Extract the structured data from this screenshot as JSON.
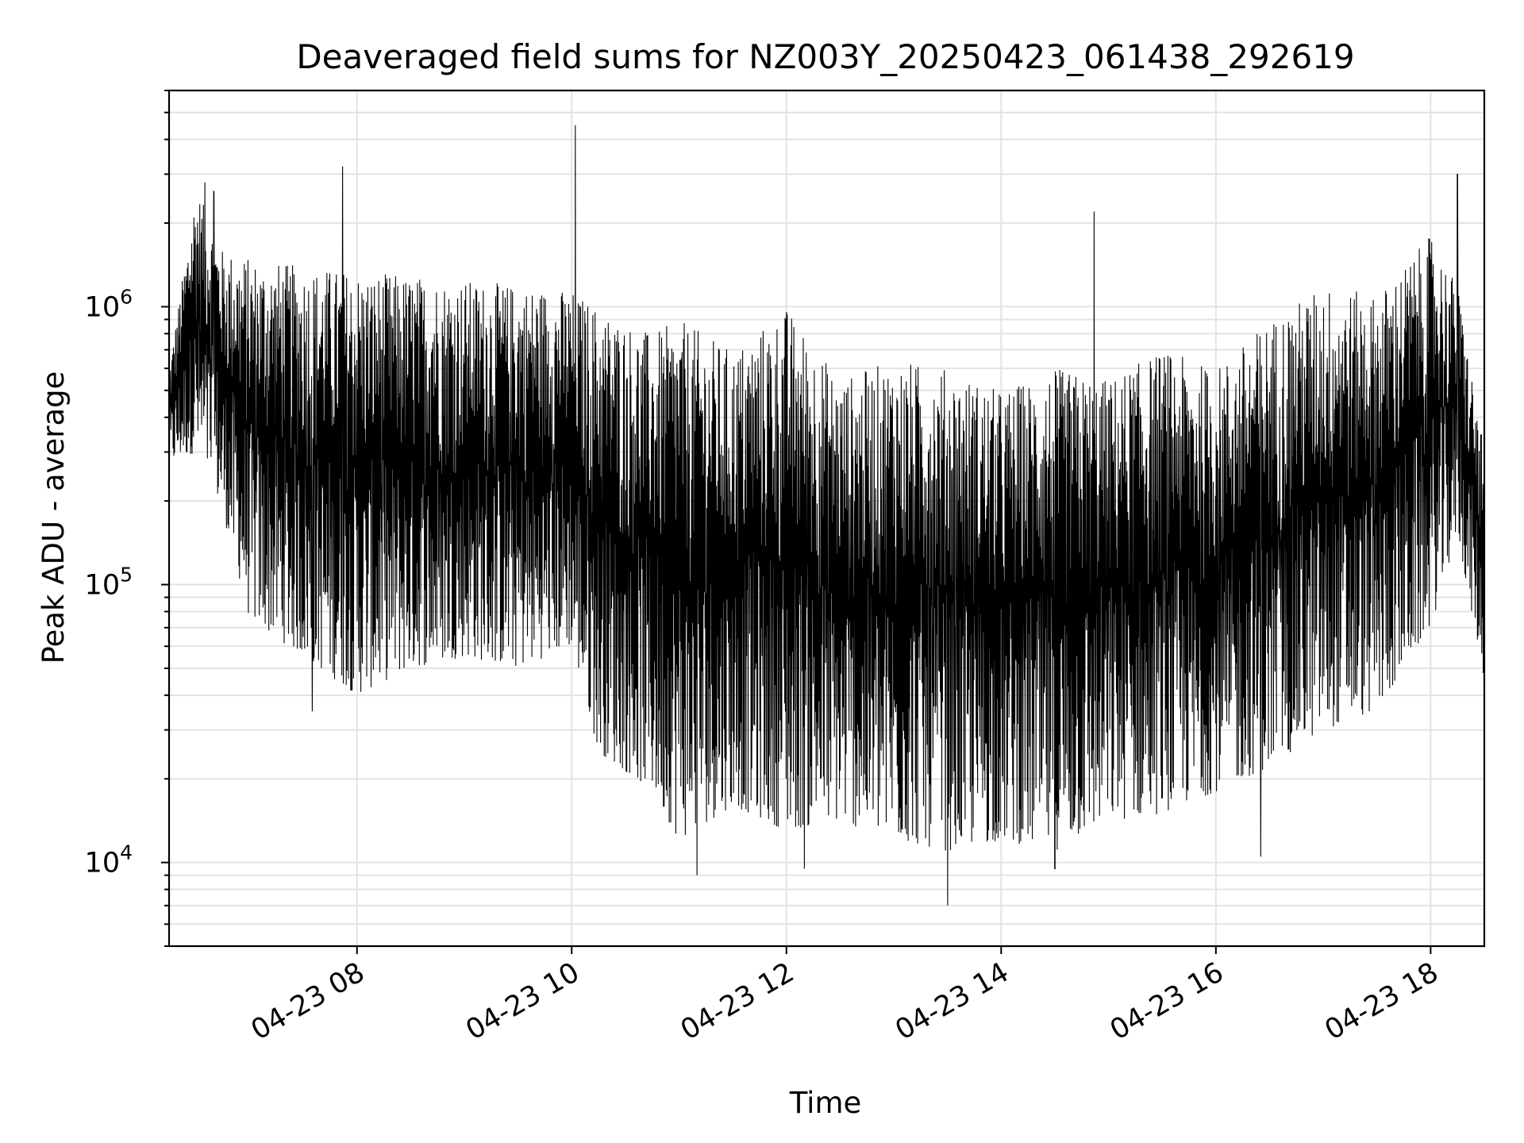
{
  "chart_data": {
    "type": "line",
    "title": "Deaveraged field sums for NZ003Y_20250423_061438_292619",
    "xlabel": "Time",
    "ylabel": "Peak ADU - average",
    "yscale": "log",
    "xlim": [
      "04-23 06:15",
      "04-23 18:30"
    ],
    "ylim": [
      5000,
      6000000
    ],
    "grid": "on",
    "legend": "none",
    "line_color": "#000000",
    "x_ticks": [
      "04-23 08",
      "04-23 10",
      "04-23 12",
      "04-23 14",
      "04-23 16",
      "04-23 18"
    ],
    "y_ticks": [
      {
        "value": 10000,
        "base": "10",
        "exp": "4"
      },
      {
        "value": 100000,
        "base": "10",
        "exp": "5"
      },
      {
        "value": 1000000,
        "base": "10",
        "exp": "6"
      }
    ],
    "series": [
      {
        "envelope": [
          {
            "x": "04-23 06:15",
            "low": 270000,
            "high": 600000
          },
          {
            "x": "04-23 06:30",
            "low": 300000,
            "high": 2700000
          },
          {
            "x": "04-23 06:45",
            "low": 180000,
            "high": 1600000
          },
          {
            "x": "04-23 07:00",
            "low": 75000,
            "high": 1500000
          },
          {
            "x": "04-23 07:30",
            "low": 55000,
            "high": 1400000
          },
          {
            "x": "04-23 08:00",
            "low": 40000,
            "high": 1350000
          },
          {
            "x": "04-23 08:30",
            "low": 50000,
            "high": 1300000
          },
          {
            "x": "04-23 09:00",
            "low": 55000,
            "high": 1250000
          },
          {
            "x": "04-23 09:30",
            "low": 50000,
            "high": 1200000
          },
          {
            "x": "04-23 10:00",
            "low": 60000,
            "high": 1150000
          },
          {
            "x": "04-23 10:15",
            "low": 25000,
            "high": 1000000
          },
          {
            "x": "04-23 10:45",
            "low": 18000,
            "high": 800000
          },
          {
            "x": "04-23 11:00",
            "low": 12000,
            "high": 900000
          },
          {
            "x": "04-23 11:30",
            "low": 16000,
            "high": 700000
          },
          {
            "x": "04-23 12:00",
            "low": 13000,
            "high": 1000000
          },
          {
            "x": "04-23 12:30",
            "low": 14000,
            "high": 550000
          },
          {
            "x": "04-23 13:00",
            "low": 12000,
            "high": 650000
          },
          {
            "x": "04-23 13:30",
            "low": 11000,
            "high": 600000
          },
          {
            "x": "04-23 14:00",
            "low": 12000,
            "high": 500000
          },
          {
            "x": "04-23 14:30",
            "low": 11000,
            "high": 600000
          },
          {
            "x": "04-23 15:00",
            "low": 14000,
            "high": 550000
          },
          {
            "x": "04-23 15:30",
            "low": 15000,
            "high": 700000
          },
          {
            "x": "04-23 16:00",
            "low": 18000,
            "high": 600000
          },
          {
            "x": "04-23 16:30",
            "low": 22000,
            "high": 900000
          },
          {
            "x": "04-23 17:00",
            "low": 30000,
            "high": 1200000
          },
          {
            "x": "04-23 17:30",
            "low": 35000,
            "high": 1100000
          },
          {
            "x": "04-23 18:00",
            "low": 70000,
            "high": 1800000
          },
          {
            "x": "04-23 18:15",
            "low": 150000,
            "high": 1200000
          },
          {
            "x": "04-23 18:30",
            "low": 45000,
            "high": 300000
          }
        ],
        "spikes": [
          {
            "x": "04-23 06:35",
            "value": 2800000
          },
          {
            "x": "04-23 06:40",
            "value": 2600000
          },
          {
            "x": "04-23 07:52",
            "value": 3200000
          },
          {
            "x": "04-23 10:02",
            "value": 4500000
          },
          {
            "x": "04-23 14:52",
            "value": 2200000
          },
          {
            "x": "04-23 18:15",
            "value": 3000000
          },
          {
            "x": "04-23 13:30",
            "value": 7000
          },
          {
            "x": "04-23 11:10",
            "value": 9000
          },
          {
            "x": "04-23 12:10",
            "value": 9500
          },
          {
            "x": "04-23 14:30",
            "value": 9500
          },
          {
            "x": "04-23 16:25",
            "value": 10500
          },
          {
            "x": "04-23 07:35",
            "value": 35000
          }
        ]
      }
    ]
  }
}
